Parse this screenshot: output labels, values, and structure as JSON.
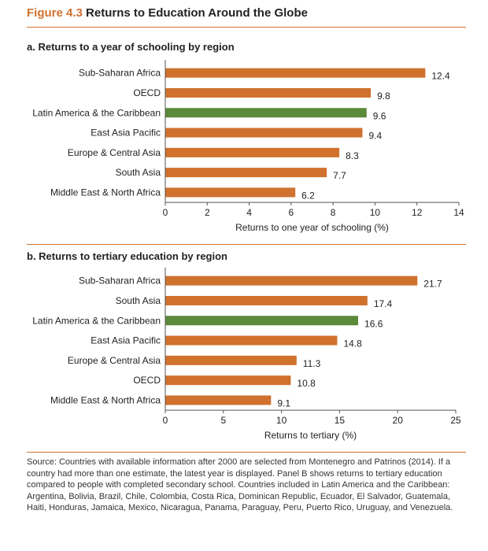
{
  "figure": {
    "number": "Figure 4.3",
    "title": "Returns to Education Around the Globe"
  },
  "colors": {
    "orange": "#d0712e",
    "green": "#5a8a3a",
    "accent": "#d0712e"
  },
  "chart_data": [
    {
      "type": "bar",
      "orientation": "horizontal",
      "title": "a. Returns to a year of schooling by region",
      "xlabel": "Returns to one year of schooling (%)",
      "ylabel": "",
      "xlim": [
        0,
        14
      ],
      "xticks": [
        0,
        2,
        4,
        6,
        8,
        10,
        12,
        14
      ],
      "grid": false,
      "categories": [
        "Sub-Saharan Africa",
        "OECD",
        "Latin America & the Caribbean",
        "East Asia Pacific",
        "Europe & Central Asia",
        "South Asia",
        "Middle East & North Africa"
      ],
      "values": [
        12.4,
        9.8,
        9.6,
        9.4,
        8.3,
        7.7,
        6.2
      ],
      "value_labels": [
        "12.4",
        "9.8",
        "9.6",
        "9.4",
        "8.3",
        "7.7",
        "6.2"
      ],
      "highlight": "Latin America & the Caribbean"
    },
    {
      "type": "bar",
      "orientation": "horizontal",
      "title": "b. Returns to tertiary education by region",
      "xlabel": "Returns to tertiary (%)",
      "ylabel": "",
      "xlim": [
        0,
        25
      ],
      "xticks": [
        0,
        5,
        10,
        15,
        20,
        25
      ],
      "grid": false,
      "categories": [
        "Sub-Saharan Africa",
        "South Asia",
        "Latin America & the Caribbean",
        "East Asia Pacific",
        "Europe & Central Asia",
        "OECD",
        "Middle East & North Africa"
      ],
      "values": [
        21.7,
        17.4,
        16.6,
        14.8,
        11.3,
        10.8,
        9.1
      ],
      "value_labels": [
        "21.7",
        "17.4",
        "16.6",
        "14.8",
        "11.3",
        "10.8",
        "9.1"
      ],
      "highlight": "Latin America & the Caribbean"
    }
  ],
  "source_note": "Source: Countries with available information after 2000 are selected from Montenegro and Patrinos (2014). If a country had more than one estimate, the latest year is displayed. Panel B shows returns to tertiary education compared to people with completed secondary school. Countries included in Latin America and the Caribbean: Argentina, Bolivia, Brazil, Chile, Colombia, Costa Rica, Dominican Republic, Ecuador, El Salvador, Guatemala, Haiti, Honduras, Jamaica, Mexico, Nicaragua, Panama, Paraguay, Peru, Puerto Rico, Uruguay, and Venezuela."
}
